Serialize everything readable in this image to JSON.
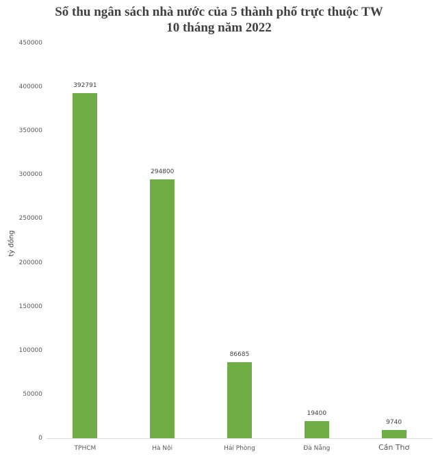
{
  "chart_data": {
    "type": "bar",
    "title": "Số thu ngân sách nhà nước của 5 thành phố trực thuộc TW",
    "subtitle": "10 tháng năm 2022",
    "xlabel": "",
    "ylabel": "tỷ đồng",
    "categories": [
      "TPHCM",
      "Hà Nội",
      "Hải Phòng",
      "Đà Nẵng",
      "Cần Thơ"
    ],
    "values": [
      392791,
      294800,
      86685,
      19400,
      9740
    ],
    "ylim": [
      0,
      450000
    ],
    "yticks": [
      "450000",
      "400000",
      "350000",
      "300000",
      "250000",
      "200000",
      "150000",
      "100000",
      "50000",
      "0"
    ],
    "bar_color": "#70ad47",
    "grid": false,
    "legend": null,
    "data_labels": [
      "392791",
      "294800",
      "86685",
      "19400",
      "9740"
    ]
  }
}
